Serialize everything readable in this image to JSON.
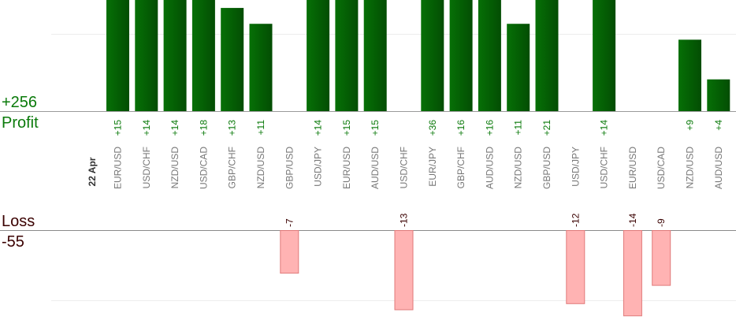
{
  "summary": {
    "profit_total": "+256",
    "profit_label": "Profit",
    "loss_label": "Loss",
    "loss_total": "-55"
  },
  "colors": {
    "profit_bar": "#0b6e0b",
    "profit_bar_dark": "#044a04",
    "profit_text": "#0a7a0a",
    "loss_bar": "#ffb3b3",
    "loss_bar_border": "#e07a7a",
    "loss_text": "#3a0000"
  },
  "chart_data": {
    "type": "bar",
    "date_label": "22 Apr",
    "categories": [
      "EUR/USD",
      "USD/CHF",
      "NZD/USD",
      "USD/CAD",
      "GBP/CHF",
      "NZD/USD",
      "GBP/USD",
      "USD/JPY",
      "EUR/USD",
      "AUD/USD",
      "USD/CHF",
      "EUR/JPY",
      "GBP/CHF",
      "AUD/USD",
      "NZD/USD",
      "GBP/USD",
      "USD/JPY",
      "USD/CHF",
      "EUR/USD",
      "USD/CAD",
      "NZD/USD",
      "AUD/USD"
    ],
    "values": [
      15,
      14,
      14,
      18,
      13,
      11,
      -7,
      14,
      15,
      15,
      -13,
      36,
      16,
      16,
      11,
      21,
      -12,
      14,
      -14,
      -9,
      9,
      4
    ],
    "value_labels": [
      "+15",
      "+14",
      "+14",
      "+18",
      "+13",
      "+11",
      "-7",
      "+14",
      "+15",
      "+15",
      "-13",
      "+36",
      "+16",
      "+16",
      "+11",
      "+21",
      "-12",
      "+14",
      "-14",
      "-9",
      "+9",
      "+4"
    ],
    "profit_axis_max": 14,
    "loss_axis_max": 15
  }
}
